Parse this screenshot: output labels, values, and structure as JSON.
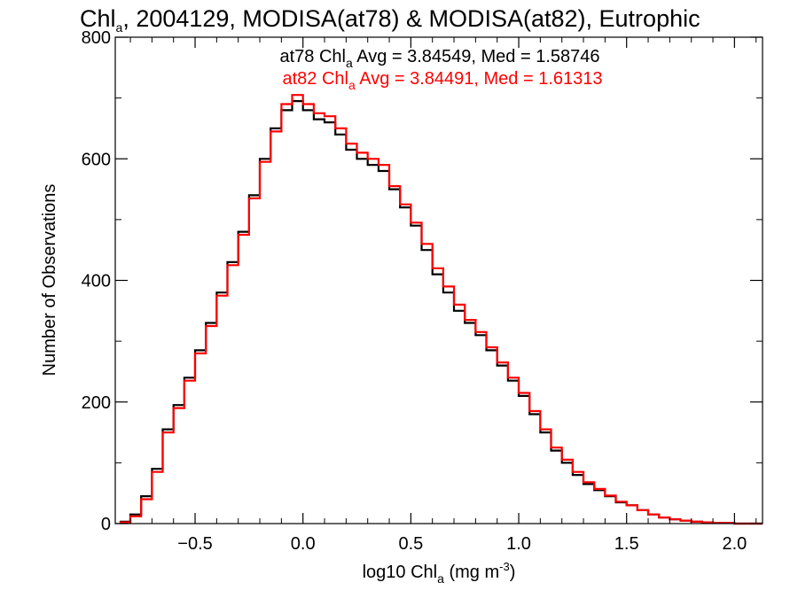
{
  "chart_data": {
    "type": "line",
    "title": {
      "pre": "Chl",
      "sub": "a",
      "post": ", 2004129, MODISA(at78) & MODISA(at82), Eutrophic"
    },
    "xlabel": {
      "pre": "log10 Chl",
      "sub": "a",
      "mid": " (mg m",
      "sup": "-3",
      "post": ")"
    },
    "ylabel": "Number of Observations",
    "xlim": [
      -0.87,
      2.13
    ],
    "ylim": [
      0,
      800
    ],
    "xticks": [
      {
        "value": -0.5,
        "label": "−0.5"
      },
      {
        "value": 0.0,
        "label": "0.0"
      },
      {
        "value": 0.5,
        "label": "0.5"
      },
      {
        "value": 1.0,
        "label": "1.0"
      },
      {
        "value": 1.5,
        "label": "1.5"
      },
      {
        "value": 2.0,
        "label": "2.0"
      }
    ],
    "yticks": [
      {
        "value": 0,
        "label": "0"
      },
      {
        "value": 200,
        "label": "200"
      },
      {
        "value": 400,
        "label": "400"
      },
      {
        "value": 600,
        "label": "600"
      },
      {
        "value": 800,
        "label": "800"
      }
    ],
    "grid": false,
    "annotations": [
      {
        "pre": "at78 Chl",
        "sub": "a",
        "post": " Avg = 3.84549, Med = 1.58746",
        "color": "#000000"
      },
      {
        "pre": "at82 Chl",
        "sub": "a",
        "post": " Avg = 3.84491, Med = 1.61313",
        "color": "#ff0000"
      }
    ],
    "series": [
      {
        "color": "#000000",
        "x": [
          -0.85,
          -0.8,
          -0.75,
          -0.7,
          -0.65,
          -0.6,
          -0.55,
          -0.5,
          -0.45,
          -0.4,
          -0.35,
          -0.3,
          -0.25,
          -0.2,
          -0.15,
          -0.1,
          -0.05,
          0.0,
          0.05,
          0.1,
          0.15,
          0.2,
          0.25,
          0.3,
          0.35,
          0.4,
          0.45,
          0.5,
          0.55,
          0.6,
          0.65,
          0.7,
          0.75,
          0.8,
          0.85,
          0.9,
          0.95,
          1.0,
          1.05,
          1.1,
          1.15,
          1.2,
          1.25,
          1.3,
          1.35,
          1.4,
          1.45,
          1.5,
          1.55,
          1.6,
          1.65,
          1.7,
          1.75,
          1.8,
          1.85,
          1.9,
          1.95,
          2.0,
          2.05
        ],
        "y": [
          3,
          15,
          45,
          90,
          155,
          195,
          240,
          285,
          330,
          380,
          430,
          480,
          540,
          600,
          650,
          680,
          695,
          680,
          665,
          660,
          640,
          615,
          600,
          590,
          580,
          550,
          520,
          490,
          450,
          410,
          380,
          350,
          330,
          310,
          285,
          260,
          235,
          210,
          180,
          150,
          120,
          100,
          80,
          65,
          55,
          45,
          35,
          30,
          22,
          15,
          10,
          7,
          5,
          3,
          2,
          1,
          1,
          0,
          0
        ]
      },
      {
        "color": "#ff0000",
        "x": [
          -0.85,
          -0.8,
          -0.75,
          -0.7,
          -0.65,
          -0.6,
          -0.55,
          -0.5,
          -0.45,
          -0.4,
          -0.35,
          -0.3,
          -0.25,
          -0.2,
          -0.15,
          -0.1,
          -0.05,
          0.0,
          0.05,
          0.1,
          0.15,
          0.2,
          0.25,
          0.3,
          0.35,
          0.4,
          0.45,
          0.5,
          0.55,
          0.6,
          0.65,
          0.7,
          0.75,
          0.8,
          0.85,
          0.9,
          0.95,
          1.0,
          1.05,
          1.1,
          1.15,
          1.2,
          1.25,
          1.3,
          1.35,
          1.4,
          1.45,
          1.5,
          1.55,
          1.6,
          1.65,
          1.7,
          1.75,
          1.8,
          1.85,
          1.9,
          1.95,
          2.0,
          2.05
        ],
        "y": [
          2,
          12,
          40,
          85,
          150,
          190,
          235,
          280,
          325,
          375,
          425,
          475,
          535,
          595,
          645,
          690,
          705,
          690,
          675,
          670,
          650,
          625,
          610,
          600,
          590,
          555,
          525,
          495,
          460,
          420,
          390,
          360,
          335,
          315,
          290,
          265,
          240,
          215,
          185,
          155,
          125,
          105,
          85,
          68,
          57,
          46,
          36,
          30,
          22,
          15,
          10,
          7,
          5,
          3,
          2,
          1,
          1,
          0,
          0
        ]
      }
    ]
  }
}
